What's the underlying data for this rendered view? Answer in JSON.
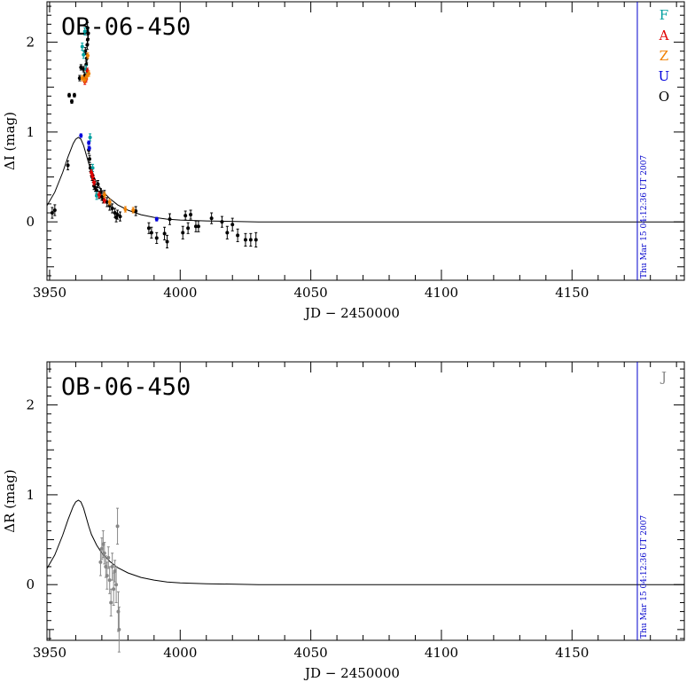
{
  "chart_data": [
    {
      "type": "scatter",
      "title": "OB-06-450",
      "xlabel": "JD − 2450000",
      "ylabel": "ΔI (mag)",
      "xlim": [
        3949,
        4193
      ],
      "ylim": [
        -0.65,
        2.45
      ],
      "xticks_labeled": [
        3950,
        4000,
        4050,
        4100,
        4150
      ],
      "yticks_labeled": [
        0,
        1,
        2
      ],
      "timestamp": "Thu Mar 15 04:12:36 UT 2007",
      "timestamp_x": 4175,
      "legend": [
        {
          "label": "F",
          "color": "#00a0a0"
        },
        {
          "label": "A",
          "color": "#e00000"
        },
        {
          "label": "Z",
          "color": "#f08000"
        },
        {
          "label": "U",
          "color": "#0000dd"
        },
        {
          "label": "O",
          "color": "#000000"
        }
      ],
      "model": {
        "x": [
          3949,
          3952,
          3955,
          3957,
          3959,
          3960,
          3961,
          3962,
          3963,
          3964,
          3965,
          3966,
          3968,
          3970,
          3973,
          3976,
          3980,
          3985,
          3990,
          3995,
          4000,
          4010,
          4030,
          4193
        ],
        "y": [
          0.18,
          0.33,
          0.55,
          0.72,
          0.87,
          0.92,
          0.94,
          0.92,
          0.85,
          0.75,
          0.65,
          0.56,
          0.44,
          0.35,
          0.26,
          0.19,
          0.13,
          0.08,
          0.05,
          0.03,
          0.02,
          0.01,
          0.0,
          0.0
        ]
      },
      "series": [
        {
          "name": "O",
          "color": "#000000",
          "points": [
            [
              3951,
              0.1,
              0.06
            ],
            [
              3952,
              0.13,
              0.06
            ],
            [
              3957,
              0.63,
              0.05
            ],
            [
              3957.5,
              1.41,
              0.02
            ],
            [
              3958.5,
              1.34,
              0.02
            ],
            [
              3959.5,
              1.41,
              0.02
            ],
            [
              3961.5,
              1.6,
              0.03
            ],
            [
              3962,
              1.72,
              0.03
            ],
            [
              3963,
              1.7,
              0.03
            ],
            [
              3963.5,
              1.63,
              0.03
            ],
            [
              3963.7,
              1.9,
              0.04
            ],
            [
              3964,
              1.75,
              0.04
            ],
            [
              3964.2,
              1.82,
              0.05
            ],
            [
              3964.4,
              1.97,
              0.05
            ],
            [
              3964.6,
              2.03,
              0.05
            ],
            [
              3964.8,
              2.1,
              0.06
            ],
            [
              3964.5,
              2.16,
              0.06
            ],
            [
              3965,
              0.8,
              0.04
            ],
            [
              3965.3,
              0.7,
              0.04
            ],
            [
              3965.6,
              0.6,
              0.04
            ],
            [
              3966,
              0.55,
              0.04
            ],
            [
              3966.3,
              0.5,
              0.04
            ],
            [
              3966.7,
              0.48,
              0.04
            ],
            [
              3967,
              0.4,
              0.04
            ],
            [
              3967.5,
              0.38,
              0.04
            ],
            [
              3968,
              0.35,
              0.04
            ],
            [
              3968.5,
              0.42,
              0.04
            ],
            [
              3969,
              0.3,
              0.04
            ],
            [
              3969.5,
              0.33,
              0.04
            ],
            [
              3970,
              0.28,
              0.04
            ],
            [
              3970.5,
              0.25,
              0.04
            ],
            [
              3971,
              0.3,
              0.05
            ],
            [
              3972,
              0.22,
              0.05
            ],
            [
              3973,
              0.18,
              0.05
            ],
            [
              3974,
              0.15,
              0.05
            ],
            [
              3975,
              0.1,
              0.05
            ],
            [
              3975.5,
              0.05,
              0.05
            ],
            [
              3976,
              0.08,
              0.05
            ],
            [
              3977,
              0.06,
              0.05
            ],
            [
              3983,
              0.12,
              0.05
            ],
            [
              3988,
              -0.07,
              0.06
            ],
            [
              3989,
              -0.12,
              0.06
            ],
            [
              3991,
              -0.18,
              0.06
            ],
            [
              3994,
              -0.13,
              0.07
            ],
            [
              3995,
              -0.22,
              0.07
            ],
            [
              3996,
              0.03,
              0.06
            ],
            [
              4001,
              -0.12,
              0.07
            ],
            [
              4002,
              0.07,
              0.05
            ],
            [
              4003,
              -0.07,
              0.06
            ],
            [
              4004,
              0.08,
              0.05
            ],
            [
              4006,
              -0.05,
              0.06
            ],
            [
              4007,
              -0.05,
              0.06
            ],
            [
              4012,
              0.04,
              0.06
            ],
            [
              4016,
              0.0,
              0.06
            ],
            [
              4018,
              -0.12,
              0.07
            ],
            [
              4020,
              -0.03,
              0.07
            ],
            [
              4022,
              -0.15,
              0.07
            ],
            [
              4025,
              -0.2,
              0.07
            ],
            [
              4027,
              -0.2,
              0.07
            ],
            [
              4029,
              -0.2,
              0.08
            ]
          ]
        },
        {
          "name": "F",
          "color": "#00a0a0",
          "points": [
            [
              3962.5,
              1.95,
              0.04
            ],
            [
              3963,
              1.86,
              0.04
            ],
            [
              3963.5,
              2.12,
              0.04
            ],
            [
              3964,
              1.7,
              0.04
            ],
            [
              3965.5,
              0.94,
              0.04
            ],
            [
              3966.5,
              0.6,
              0.04
            ],
            [
              3968,
              0.29,
              0.04
            ]
          ]
        },
        {
          "name": "A",
          "color": "#e00000",
          "points": [
            [
              3963.5,
              1.56,
              0.03
            ],
            [
              3964,
              1.59,
              0.03
            ],
            [
              3964.5,
              1.68,
              0.03
            ],
            [
              3966,
              0.55,
              0.03
            ],
            [
              3966.5,
              0.5,
              0.03
            ],
            [
              3967,
              0.44,
              0.03
            ],
            [
              3969,
              0.3,
              0.03
            ],
            [
              3971,
              0.24,
              0.03
            ]
          ]
        },
        {
          "name": "Z",
          "color": "#f08000",
          "points": [
            [
              3962.5,
              1.6,
              0.03
            ],
            [
              3963.5,
              1.58,
              0.03
            ],
            [
              3964.2,
              1.62,
              0.03
            ],
            [
              3964.6,
              1.85,
              0.03
            ],
            [
              3965,
              1.65,
              0.03
            ],
            [
              3971,
              0.3,
              0.03
            ],
            [
              3973,
              0.22,
              0.03
            ],
            [
              3979,
              0.14,
              0.03
            ],
            [
              3982,
              0.13,
              0.03
            ]
          ]
        },
        {
          "name": "U",
          "color": "#0000dd",
          "points": [
            [
              3962,
              0.96,
              0.02
            ],
            [
              3965,
              0.88,
              0.02
            ],
            [
              3965.2,
              0.82,
              0.02
            ],
            [
              3991,
              0.03,
              0.02
            ]
          ]
        }
      ]
    },
    {
      "type": "scatter",
      "title": "OB-06-450",
      "xlabel": "JD − 2450000",
      "ylabel": "ΔR (mag)",
      "xlim": [
        3949,
        4193
      ],
      "ylim": [
        -0.62,
        2.48
      ],
      "xticks_labeled": [
        3950,
        4000,
        4050,
        4100,
        4150
      ],
      "yticks_labeled": [
        0,
        1,
        2
      ],
      "timestamp": "Thu Mar 15 04:12:36 UT 2007",
      "timestamp_x": 4175,
      "legend": [
        {
          "label": "J",
          "color": "#888888"
        }
      ],
      "model": {
        "x": [
          3949,
          3952,
          3955,
          3957,
          3959,
          3960,
          3961,
          3962,
          3963,
          3964,
          3965,
          3966,
          3968,
          3970,
          3973,
          3976,
          3980,
          3985,
          3990,
          3995,
          4000,
          4010,
          4030,
          4193
        ],
        "y": [
          0.18,
          0.33,
          0.55,
          0.72,
          0.87,
          0.92,
          0.94,
          0.92,
          0.85,
          0.75,
          0.65,
          0.56,
          0.44,
          0.35,
          0.26,
          0.19,
          0.13,
          0.08,
          0.05,
          0.03,
          0.02,
          0.01,
          0.0,
          0.0
        ]
      },
      "series": [
        {
          "name": "J",
          "color": "#888888",
          "points": [
            [
              3969.5,
              0.25,
              0.15
            ],
            [
              3970,
              0.4,
              0.12
            ],
            [
              3970.5,
              0.45,
              0.15
            ],
            [
              3971,
              0.35,
              0.12
            ],
            [
              3971.5,
              0.2,
              0.12
            ],
            [
              3972,
              0.1,
              0.15
            ],
            [
              3972.5,
              0.3,
              0.12
            ],
            [
              3973,
              0.05,
              0.15
            ],
            [
              3973.5,
              -0.2,
              0.15
            ],
            [
              3974,
              0.2,
              0.15
            ],
            [
              3974.5,
              -0.05,
              0.18
            ],
            [
              3975,
              0.15,
              0.12
            ],
            [
              3975.5,
              0.0,
              0.2
            ],
            [
              3976,
              0.65,
              0.2
            ],
            [
              3976.3,
              -0.3,
              0.22
            ],
            [
              3976.6,
              -0.5,
              0.25
            ]
          ]
        }
      ]
    }
  ]
}
